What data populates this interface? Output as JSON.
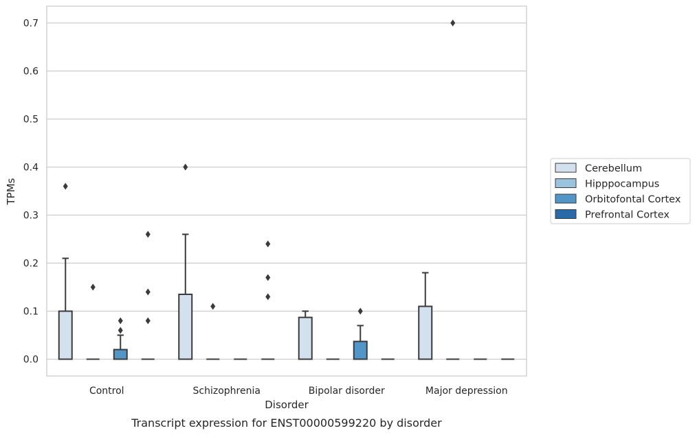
{
  "chart_data": {
    "type": "box",
    "title": "",
    "caption": "Transcript expression for ENST00000599220 by disorder",
    "xlabel": "Disorder",
    "ylabel": "TPMs",
    "ylim": [
      -0.035,
      0.735
    ],
    "yticks": [
      0.0,
      0.1,
      0.2,
      0.3,
      0.4,
      0.5,
      0.6,
      0.7
    ],
    "ytick_labels": [
      "0.0",
      "0.1",
      "0.2",
      "0.3",
      "0.4",
      "0.5",
      "0.6",
      "0.7"
    ],
    "grid": "horizontal",
    "legend_position": "right",
    "categories": [
      "Control",
      "Schizophrenia",
      "Bipolar disorder",
      "Major depression"
    ],
    "series": [
      {
        "name": "Cerebellum",
        "color": "#d3e1ef",
        "boxes": [
          {
            "q1": 0.0,
            "median": 0.0,
            "q3": 0.1,
            "whisker_low": 0.0,
            "whisker_high": 0.21,
            "outliers": [
              0.36
            ]
          },
          {
            "q1": 0.0,
            "median": 0.0,
            "q3": 0.135,
            "whisker_low": 0.0,
            "whisker_high": 0.26,
            "outliers": [
              0.4
            ]
          },
          {
            "q1": 0.0,
            "median": 0.0,
            "q3": 0.087,
            "whisker_low": 0.0,
            "whisker_high": 0.1,
            "outliers": []
          },
          {
            "q1": 0.0,
            "median": 0.0,
            "q3": 0.11,
            "whisker_low": 0.0,
            "whisker_high": 0.18,
            "outliers": []
          }
        ]
      },
      {
        "name": "Hipppocampus",
        "color": "#9ac3de",
        "boxes": [
          {
            "q1": 0.0,
            "median": 0.0,
            "q3": 0.0,
            "whisker_low": 0.0,
            "whisker_high": 0.0,
            "outliers": [
              0.15
            ]
          },
          {
            "q1": 0.0,
            "median": 0.0,
            "q3": 0.0,
            "whisker_low": 0.0,
            "whisker_high": 0.0,
            "outliers": [
              0.11
            ]
          },
          {
            "q1": 0.0,
            "median": 0.0,
            "q3": 0.0,
            "whisker_low": 0.0,
            "whisker_high": 0.0,
            "outliers": []
          },
          {
            "q1": 0.0,
            "median": 0.0,
            "q3": 0.0,
            "whisker_low": 0.0,
            "whisker_high": 0.0,
            "outliers": [
              0.7
            ]
          }
        ]
      },
      {
        "name": "Orbitofontal Cortex",
        "color": "#5296c7",
        "boxes": [
          {
            "q1": 0.0,
            "median": 0.0,
            "q3": 0.02,
            "whisker_low": 0.0,
            "whisker_high": 0.05,
            "outliers": [
              0.06,
              0.08
            ]
          },
          {
            "q1": 0.0,
            "median": 0.0,
            "q3": 0.0,
            "whisker_low": 0.0,
            "whisker_high": 0.0,
            "outliers": []
          },
          {
            "q1": 0.0,
            "median": 0.0,
            "q3": 0.037,
            "whisker_low": 0.0,
            "whisker_high": 0.07,
            "outliers": [
              0.1
            ]
          },
          {
            "q1": 0.0,
            "median": 0.0,
            "q3": 0.0,
            "whisker_low": 0.0,
            "whisker_high": 0.0,
            "outliers": []
          }
        ]
      },
      {
        "name": "Prefrontal Cortex",
        "color": "#2a6aa8",
        "boxes": [
          {
            "q1": 0.0,
            "median": 0.0,
            "q3": 0.0,
            "whisker_low": 0.0,
            "whisker_high": 0.0,
            "outliers": [
              0.08,
              0.14,
              0.26
            ]
          },
          {
            "q1": 0.0,
            "median": 0.0,
            "q3": 0.0,
            "whisker_low": 0.0,
            "whisker_high": 0.0,
            "outliers": [
              0.13,
              0.17,
              0.24
            ]
          },
          {
            "q1": 0.0,
            "median": 0.0,
            "q3": 0.0,
            "whisker_low": 0.0,
            "whisker_high": 0.0,
            "outliers": []
          },
          {
            "q1": 0.0,
            "median": 0.0,
            "q3": 0.0,
            "whisker_low": 0.0,
            "whisker_high": 0.0,
            "outliers": []
          }
        ]
      }
    ]
  }
}
